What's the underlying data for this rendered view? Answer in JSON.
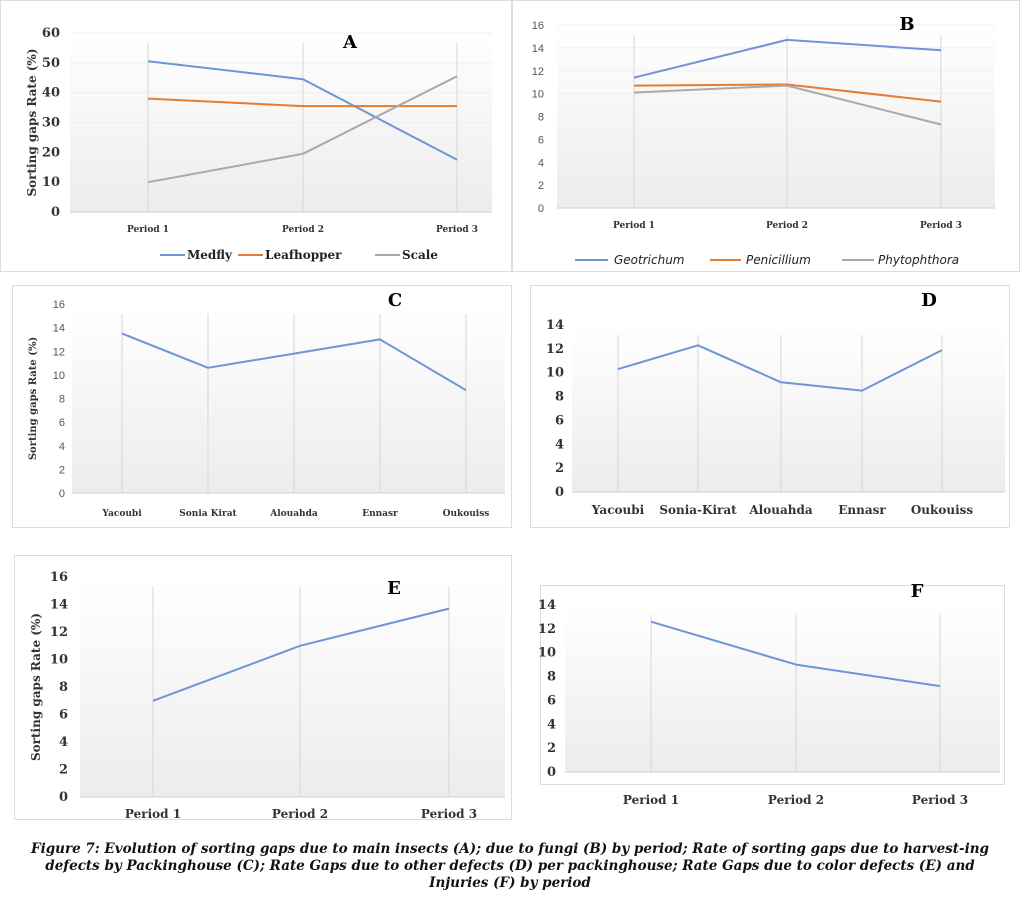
{
  "caption": "Figure 7: Evolution of sorting gaps due to main insects (A); due to fungi (B) by period;  Rate of sorting gaps due to harvest-ing defects by Packinghouse (C); Rate Gaps due to other defects (D) per packinghouse; Rate Gaps due to color defects (E) and Injuries (F) by period",
  "chart_data": [
    {
      "id": "A",
      "type": "line",
      "title": "A",
      "ylabel": "Sorting gaps Rate (%)",
      "categories": [
        "Period 1",
        "Period 2",
        "Period 3"
      ],
      "ylim": [
        0,
        60
      ],
      "yticks": [
        "0",
        "10",
        "20",
        "30",
        "40",
        "50",
        "60"
      ],
      "series": [
        {
          "name": "Medfly",
          "color": "#6e95d4",
          "values": [
            50.5,
            44.5,
            17.5
          ]
        },
        {
          "name": "Leafhopper",
          "color": "#e57c32",
          "values": [
            38,
            35.5,
            35.5
          ]
        },
        {
          "name": "Scale",
          "color": "#a9a9a9",
          "values": [
            10,
            19.5,
            45.5
          ]
        }
      ],
      "legend": "bottom"
    },
    {
      "id": "B",
      "type": "line",
      "title": "B",
      "categories": [
        "Period 1",
        "Period 2",
        "Period 3"
      ],
      "ylim": [
        0,
        16
      ],
      "yticks": [
        "0",
        "2",
        "4",
        "6",
        "8",
        "10",
        "12",
        "14",
        "16"
      ],
      "series": [
        {
          "name": "Geotrichum",
          "color": "#6e95d4",
          "values": [
            11.4,
            14.7,
            13.8
          ]
        },
        {
          "name": "Penicillium",
          "color": "#e57c32",
          "values": [
            10.7,
            10.8,
            9.3
          ]
        },
        {
          "name": "Phytophthora",
          "color": "#a9a9a9",
          "values": [
            10.1,
            10.7,
            7.3
          ]
        }
      ],
      "legend": "bottom"
    },
    {
      "id": "C",
      "type": "line",
      "title": "C",
      "ylabel": "Sorting gaps Rate (%)",
      "categories": [
        "Yacoubi",
        "Sonia Kirat",
        "Alouahda",
        "Ennasr",
        "Oukouiss"
      ],
      "ylim": [
        0,
        16
      ],
      "yticks": [
        "0",
        "2",
        "4",
        "6",
        "8",
        "10",
        "12",
        "14",
        "16"
      ],
      "series": [
        {
          "color": "#6e95d4",
          "values": [
            13.5,
            10.6,
            11.8,
            13.0,
            8.7
          ]
        }
      ]
    },
    {
      "id": "D",
      "type": "line",
      "title": "D",
      "categories": [
        "Yacoubi",
        "Sonia-Kirat",
        "Alouahda",
        "Ennasr",
        "Oukouiss"
      ],
      "ylim": [
        0,
        14
      ],
      "yticks": [
        "0",
        "2",
        "4",
        "6",
        "8",
        "10",
        "12",
        "14"
      ],
      "series": [
        {
          "color": "#6e95d4",
          "values": [
            10.3,
            12.3,
            9.2,
            8.5,
            11.9
          ]
        }
      ]
    },
    {
      "id": "E",
      "type": "line",
      "title": "E",
      "ylabel": "Sorting gaps Rate (%)",
      "categories": [
        "Period 1",
        "Period 2",
        "Period 3"
      ],
      "ylim": [
        0,
        16
      ],
      "yticks": [
        "0",
        "2",
        "4",
        "6",
        "8",
        "10",
        "12",
        "14",
        "16"
      ],
      "series": [
        {
          "color": "#6e95d4",
          "values": [
            7.0,
            11.0,
            13.7
          ]
        }
      ]
    },
    {
      "id": "F",
      "type": "line",
      "title": "F",
      "categories": [
        "Period 1",
        "Period 2",
        "Period 3"
      ],
      "ylim": [
        0,
        14
      ],
      "yticks": [
        "0",
        "2",
        "4",
        "6",
        "8",
        "10",
        "12",
        "14"
      ],
      "series": [
        {
          "color": "#6e95d4",
          "values": [
            12.6,
            9.0,
            7.2
          ]
        }
      ]
    }
  ]
}
